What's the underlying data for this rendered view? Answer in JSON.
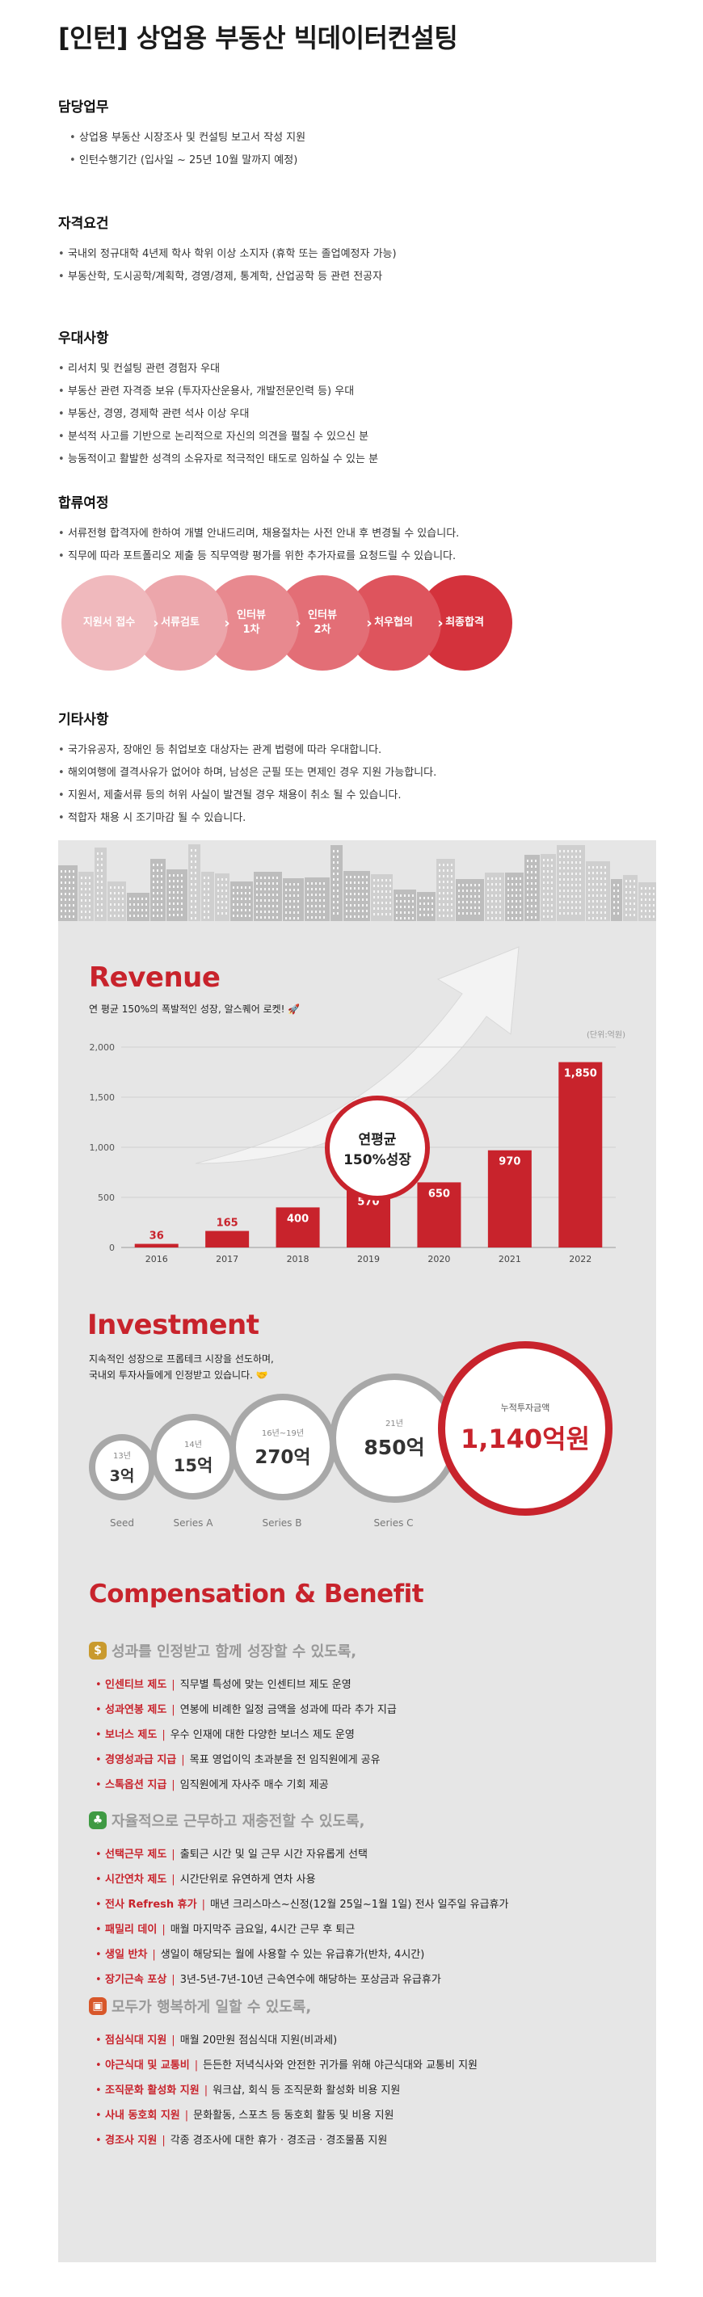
{
  "title": "[인턴] 상업용 부동산 빅데이터컨설팅",
  "duties": {
    "heading": "담당업무",
    "items": [
      "상업용 부동산 시장조사 및 컨설팅 보고서 작성 지원",
      "인턴수행기간 (입사일 ~ 25년 10월 말까지 예정)"
    ]
  },
  "requirements": {
    "heading": "자격요건",
    "items": [
      "국내외 정규대학 4년제 학사 학위 이상 소지자 (휴학 또는 졸업예정자 가능)",
      "부동산학, 도시공학/계획학, 경영/경제, 통계학, 산업공학 등 관련 전공자"
    ]
  },
  "preferred": {
    "heading": "우대사항",
    "items": [
      "리서치 및 컨설팅 관련 경험자 우대",
      "부동산 관련 자격증 보유 (투자자산운용사, 개발전문인력 등) 우대",
      "부동산, 경영, 경제학 관련 석사 이상 우대",
      "분석적 사고를 기반으로 논리적으로 자신의 의견을 펼칠 수 있으신 분",
      "능동적이고 활발한 성격의 소유자로 적극적인 태도로 임하실 수 있는 분"
    ]
  },
  "process": {
    "heading": "합류여정",
    "items": [
      "서류전형 합격자에 한하여 개별 안내드리며, 채용절차는 사전 안내 후 변경될 수 있습니다.",
      "직무에 따라 포트폴리오 제출 등 직무역량 평가를 위한 추가자료를 요청드릴 수 있습니다."
    ],
    "steps": [
      {
        "label": "지원서 접수",
        "color": "#f0b9bd"
      },
      {
        "label": "서류검토",
        "color": "#eca6ab"
      },
      {
        "label": "인터뷰\n1차",
        "color": "#e8898f"
      },
      {
        "label": "인터뷰\n2차",
        "color": "#e36e76"
      },
      {
        "label": "처우협의",
        "color": "#de545d"
      },
      {
        "label": "최종합격",
        "color": "#d4323c"
      }
    ]
  },
  "etc": {
    "heading": "기타사항",
    "items": [
      "국가유공자, 장애인 등 취업보호 대상자는 관계 법령에 따라 우대합니다.",
      "해외여행에 결격사유가 없어야 하며, 남성은 군필 또는 면제인 경우 지원 가능합니다.",
      "지원서, 제출서류 등의 허위 사실이 발견될 경우 채용이 취소 될 수 있습니다.",
      "적합자 채용 시 조기마감 될 수 있습니다."
    ]
  },
  "revenue": {
    "title": "Revenue",
    "subtitle": "연 평균 150%의 폭발적인 성장, 알스퀘어 로켓! 🚀",
    "unit": "(단위:억원)",
    "badge_line1": "연평균",
    "badge_line2": "150%성장",
    "accent": "#c8232c"
  },
  "chart_data": {
    "type": "bar",
    "categories": [
      "2016",
      "2017",
      "2018",
      "2019",
      "2020",
      "2021",
      "2022"
    ],
    "values": [
      36,
      165,
      400,
      570,
      650,
      970,
      1850
    ],
    "yticks": [
      "0",
      "500",
      "1,000",
      "1,500",
      "2,000"
    ],
    "ylim": [
      0,
      2000
    ],
    "ylabel": "",
    "xlabel": "",
    "grid": true
  },
  "investment": {
    "title": "Investment",
    "subtitle_line1": "지속적인 성장으로 프롭테크 시장을 선도하며,",
    "subtitle_line2": "국내외 투자사들에게 인정받고 있습니다. 🤝",
    "rounds": [
      {
        "year": "13년",
        "amount": "3억",
        "stage": "Seed"
      },
      {
        "year": "14년",
        "amount": "15억",
        "stage": "Series A"
      },
      {
        "year": "16년~19년",
        "amount": "270억",
        "stage": "Series B"
      },
      {
        "year": "21년",
        "amount": "850억",
        "stage": "Series C"
      }
    ],
    "total_label": "누적투자금액",
    "total_value": "1,140억원"
  },
  "compensation": {
    "title": "Compensation & Benefit",
    "groups": [
      {
        "icon": "money-bag-icon",
        "heading": "성과를 인정받고 함께 성장할 수 있도록,",
        "items": [
          {
            "key": "인센티브 제도",
            "desc": "직무별 특성에 맞는 인센티브 제도 운영"
          },
          {
            "key": "성과연봉 제도",
            "desc": "연봉에 비례한 일정 금액을 성과에 따라 추가 지급"
          },
          {
            "key": "보너스 제도",
            "desc": "우수 인재에 대한 다양한 보너스 제도 운영"
          },
          {
            "key": "경영성과급 지급",
            "desc": "목표 영업이익 초과분을 전 임직원에게 공유"
          },
          {
            "key": "스톡옵션 지급",
            "desc": "임직원에게 자사주 매수 기회 제공"
          }
        ]
      },
      {
        "icon": "palm-tree-icon",
        "heading": "자율적으로 근무하고 재충전할 수 있도록,",
        "items": [
          {
            "key": "선택근무 제도",
            "desc": "출퇴근 시간 및 일 근무 시간 자유롭게 선택"
          },
          {
            "key": "시간연차 제도",
            "desc": "시간단위로 유연하게 연차 사용"
          },
          {
            "key": "전사 Refresh 휴가",
            "desc": "매년 크리스마스~신정(12월 25일~1월 1일) 전사 일주일 유급휴가"
          },
          {
            "key": "패밀리 데이",
            "desc": "매월 마지막주 금요일, 4시간 근무 후 퇴근"
          },
          {
            "key": "생일 반차",
            "desc": "생일이 해당되는 월에 사용할 수 있는 유급휴가(반차, 4시간)"
          },
          {
            "key": "장기근속 포상",
            "desc": "3년-5년-7년-10년 근속연수에 해당하는 포상금과 유급휴가"
          }
        ]
      },
      {
        "icon": "gift-icon",
        "heading": "모두가 행복하게 일할 수 있도록,",
        "items": [
          {
            "key": "점심식대 지원",
            "desc": "매월 20만원 점심식대 지원(비과세)"
          },
          {
            "key": "야근식대 및 교통비",
            "desc": "든든한 저녁식사와 안전한 귀가를 위해 야근식대와 교통비 지원"
          },
          {
            "key": "조직문화 활성화 지원",
            "desc": "워크샵, 회식 등 조직문화 활성화 비용 지원"
          },
          {
            "key": "사내 동호회 지원",
            "desc": "문화활동, 스포츠 등 동호회 활동 및 비용 지원"
          },
          {
            "key": "경조사 지원",
            "desc": "각종 경조사에 대한 휴가 · 경조금 · 경조물품 지원"
          }
        ]
      }
    ]
  }
}
